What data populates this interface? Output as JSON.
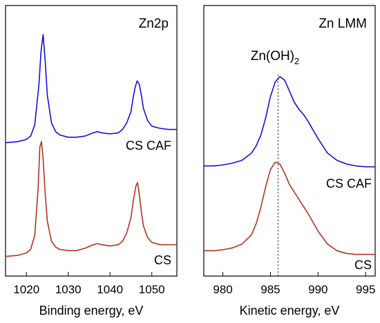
{
  "chart_data": [
    {
      "type": "line",
      "panel_label": "Zn2p",
      "xlabel": "Binding energy, eV",
      "ylabel": "",
      "xlim": [
        1015,
        1056
      ],
      "x_ticks": [
        "1020",
        "1030",
        "1040",
        "1050"
      ],
      "y_ticks": [],
      "grid": false,
      "series": [
        {
          "name": "CS CAF",
          "color": "#1010dd",
          "x": [
            1015,
            1018,
            1020,
            1021,
            1022,
            1023,
            1023.5,
            1024,
            1024.5,
            1025,
            1026,
            1027,
            1028,
            1030,
            1032,
            1034,
            1036,
            1037,
            1038,
            1040,
            1042,
            1043,
            1044,
            1045,
            1045.5,
            1046,
            1046.5,
            1047,
            1047.5,
            1048,
            1049,
            1050,
            1052,
            1054,
            1056
          ],
          "y": [
            0.02,
            0.03,
            0.05,
            0.08,
            0.18,
            0.55,
            0.85,
            1.0,
            0.75,
            0.45,
            0.2,
            0.12,
            0.09,
            0.07,
            0.07,
            0.08,
            0.11,
            0.12,
            0.11,
            0.1,
            0.11,
            0.14,
            0.2,
            0.3,
            0.42,
            0.52,
            0.58,
            0.55,
            0.45,
            0.33,
            0.22,
            0.17,
            0.15,
            0.14,
            0.14
          ]
        },
        {
          "name": "CS",
          "color": "#b4331e",
          "x": [
            1015,
            1018,
            1020,
            1021,
            1022,
            1022.8,
            1023.2,
            1023.6,
            1024,
            1024.5,
            1025,
            1026,
            1027,
            1028,
            1030,
            1032,
            1034,
            1036,
            1037,
            1038,
            1040,
            1042,
            1043,
            1044,
            1045,
            1045.6,
            1046.2,
            1046.6,
            1047,
            1047.5,
            1048,
            1049,
            1050,
            1052,
            1054,
            1056
          ],
          "y": [
            0.02,
            0.03,
            0.05,
            0.08,
            0.2,
            0.6,
            0.95,
            1.0,
            0.85,
            0.55,
            0.32,
            0.15,
            0.1,
            0.08,
            0.07,
            0.07,
            0.09,
            0.12,
            0.13,
            0.12,
            0.11,
            0.12,
            0.15,
            0.22,
            0.35,
            0.5,
            0.62,
            0.65,
            0.55,
            0.4,
            0.28,
            0.18,
            0.14,
            0.12,
            0.12,
            0.12
          ]
        }
      ]
    },
    {
      "type": "line",
      "panel_label": "Zn LMM",
      "xlabel": "Kinetic energy, eV",
      "ylabel": "",
      "xlim": [
        978,
        996
      ],
      "x_ticks": [
        "980",
        "985",
        "990",
        "995"
      ],
      "y_ticks": [],
      "grid": false,
      "annotation": {
        "text": "Zn(OH)",
        "subscript": "2",
        "x": 985.8
      },
      "series": [
        {
          "name": "CS CAF",
          "color": "#1010dd",
          "x": [
            978,
            979,
            980,
            981,
            982,
            983,
            983.5,
            984,
            984.5,
            985,
            985.5,
            986,
            986.5,
            987,
            987.5,
            988,
            988.5,
            989,
            990,
            991,
            992,
            993,
            994,
            995,
            996
          ],
          "y": [
            0.02,
            0.02,
            0.03,
            0.05,
            0.08,
            0.16,
            0.24,
            0.36,
            0.55,
            0.78,
            0.94,
            1.0,
            0.96,
            0.84,
            0.72,
            0.64,
            0.58,
            0.5,
            0.32,
            0.16,
            0.08,
            0.04,
            0.02,
            0.01,
            0.01
          ]
        },
        {
          "name": "CS",
          "color": "#b4331e",
          "x": [
            978,
            979,
            980,
            981,
            982,
            983,
            983.5,
            984,
            984.5,
            985,
            985.5,
            986,
            986.5,
            987,
            987.5,
            988,
            988.5,
            989,
            990,
            991,
            992,
            993,
            994,
            995,
            996
          ],
          "y": [
            0.05,
            0.05,
            0.06,
            0.08,
            0.12,
            0.22,
            0.34,
            0.52,
            0.74,
            0.92,
            1.0,
            0.98,
            0.88,
            0.76,
            0.68,
            0.6,
            0.52,
            0.44,
            0.26,
            0.12,
            0.05,
            0.02,
            0.01,
            0.01,
            0.01
          ]
        }
      ]
    }
  ]
}
